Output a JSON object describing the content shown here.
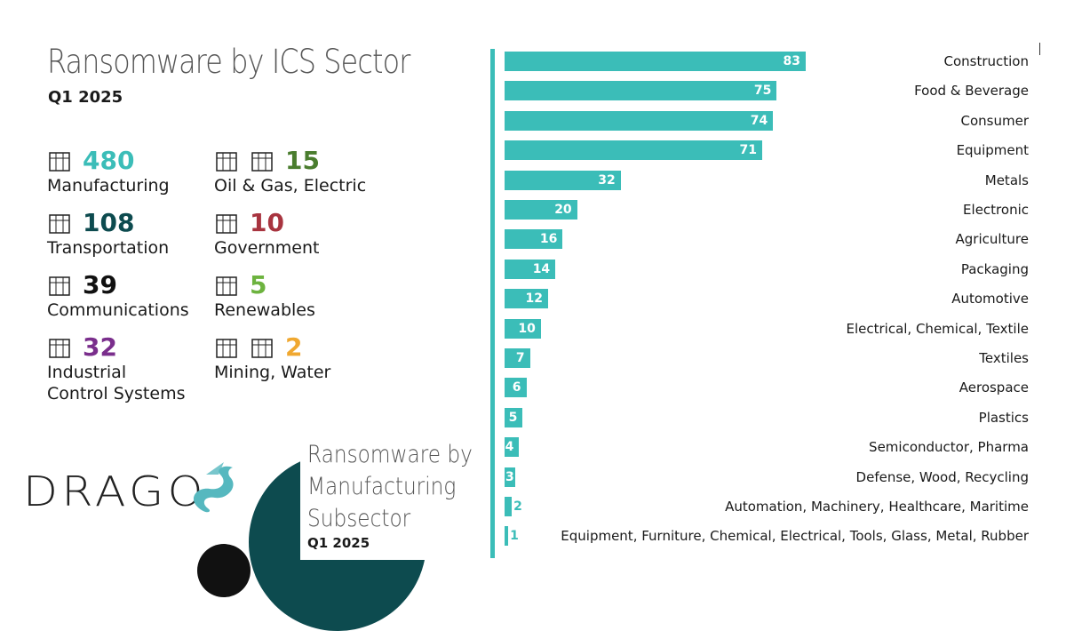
{
  "header": {
    "title": "Ransomware by ICS Sector",
    "period": "Q1 2025"
  },
  "sectors": [
    {
      "icon": "factory-icon",
      "value": "480",
      "label": "Manufacturing",
      "color": "#3bbdb8"
    },
    {
      "icon": "truck-icon",
      "value": "108",
      "label": "Transportation",
      "color": "#0d4b4f"
    },
    {
      "icon": "satellite-dish-icon",
      "value": "39",
      "label": "Communications",
      "color": "#111111"
    },
    {
      "icon": "gear-control-icon",
      "value": "32",
      "label": "Industrial\nControl Systems",
      "label1": "Industrial",
      "label2": "Control Systems",
      "color": "#7a2e8c"
    },
    {
      "icon": "oil-rig-pylon-icon",
      "value": "15",
      "label": "Oil & Gas, Electric",
      "color": "#4a7d2e"
    },
    {
      "icon": "government-building-icon",
      "value": "10",
      "label": "Government",
      "color": "#a8343f"
    },
    {
      "icon": "recycle-icon",
      "value": "5",
      "label": "Renewables",
      "color": "#6db33f"
    },
    {
      "icon": "mine-cart-faucet-icon",
      "value": "2",
      "label": "Mining, Water",
      "color": "#f0a830"
    }
  ],
  "logo": {
    "text": "DRAGOS"
  },
  "subchart": {
    "title_lines": [
      "Ransomware by",
      "Manufacturing",
      "Subsector"
    ],
    "period": "Q1 2025"
  },
  "chart_data": {
    "type": "bar",
    "orientation": "horizontal",
    "title": "Ransomware by Manufacturing Subsector",
    "subtitle": "Q1 2025",
    "categories": [
      "Construction",
      "Food & Beverage",
      "Consumer",
      "Equipment",
      "Metals",
      "Electronic",
      "Agriculture",
      "Packaging",
      "Automotive",
      "Electrical, Chemical, Textile",
      "Textiles",
      "Aerospace",
      "Plastics",
      "Semiconductor, Pharma",
      "Defense, Wood, Recycling",
      "Automation, Machinery, Healthcare, Maritime",
      "Equipment, Furniture, Chemical, Electrical, Tools, Glass, Metal, Rubber"
    ],
    "values": [
      83,
      75,
      74,
      71,
      32,
      20,
      16,
      14,
      12,
      10,
      7,
      6,
      5,
      4,
      3,
      2,
      1
    ],
    "xlim": [
      0,
      83
    ],
    "color": "#3bbdb8",
    "grid": false,
    "data_labels": true
  }
}
